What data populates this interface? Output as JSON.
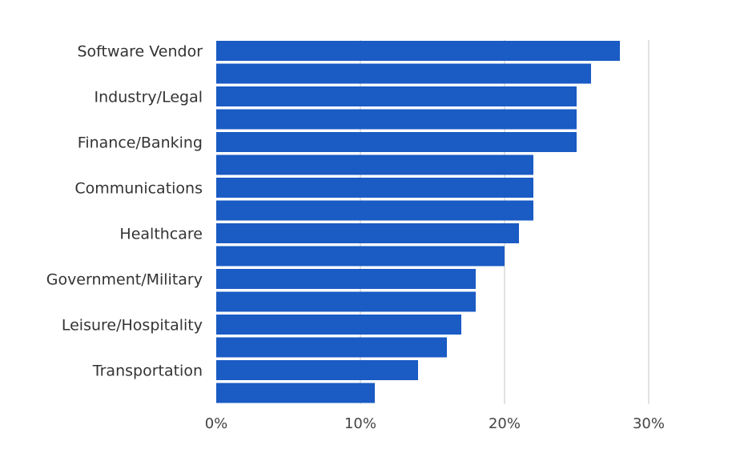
{
  "chart_data": {
    "type": "bar",
    "orientation": "horizontal",
    "categories": [
      "Software Vendor",
      "",
      "Industry/Legal",
      "",
      "Finance/Banking",
      "",
      "Communications",
      "",
      "Healthcare",
      "",
      "Government/Military",
      "",
      "Leisure/Hospitality",
      "",
      "Transportation",
      ""
    ],
    "values": [
      28,
      26,
      25,
      25,
      25,
      22,
      22,
      22,
      21,
      20,
      18,
      18,
      17,
      16,
      14,
      11
    ],
    "unit": "%",
    "xlim": [
      0,
      30
    ],
    "ticks": [
      {
        "value": 0,
        "label": "0%"
      },
      {
        "value": 10,
        "label": "10%"
      },
      {
        "value": 20,
        "label": "20%"
      },
      {
        "value": 30,
        "label": "30%"
      }
    ],
    "title": "",
    "xlabel": "",
    "ylabel": "",
    "grid": true,
    "legend": "none",
    "bar_color": "#1a5bc4",
    "grid_color": "#d9d9d9"
  }
}
